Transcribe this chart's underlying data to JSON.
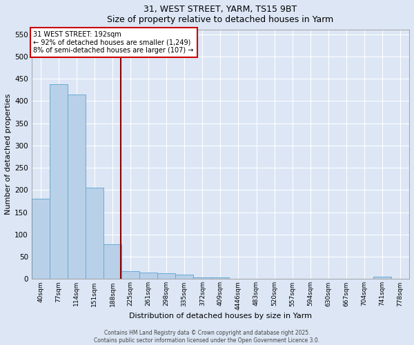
{
  "title_line1": "31, WEST STREET, YARM, TS15 9BT",
  "title_line2": "Size of property relative to detached houses in Yarm",
  "xlabel": "Distribution of detached houses by size in Yarm",
  "ylabel": "Number of detached properties",
  "categories": [
    "40sqm",
    "77sqm",
    "114sqm",
    "151sqm",
    "188sqm",
    "225sqm",
    "261sqm",
    "298sqm",
    "335sqm",
    "372sqm",
    "409sqm",
    "4446sqm",
    "483sqm",
    "520sqm",
    "557sqm",
    "594sqm",
    "630sqm",
    "667sqm",
    "704sqm",
    "741sqm",
    "778sqm"
  ],
  "values": [
    180,
    438,
    415,
    205,
    78,
    18,
    15,
    13,
    10,
    4,
    4,
    0,
    0,
    0,
    0,
    0,
    0,
    0,
    0,
    5,
    0
  ],
  "bar_color": "#b8d0e8",
  "bar_edgecolor": "#6aaad4",
  "background_color": "#dce6f5",
  "fig_background_color": "#dce6f5",
  "grid_color": "#ffffff",
  "red_line_x": 4.475,
  "annotation_title": "31 WEST STREET: 192sqm",
  "annotation_line1": "← 92% of detached houses are smaller (1,249)",
  "annotation_line2": "8% of semi-detached houses are larger (107) →",
  "annotation_box_color": "#cc0000",
  "ylim": [
    0,
    560
  ],
  "yticks": [
    0,
    50,
    100,
    150,
    200,
    250,
    300,
    350,
    400,
    450,
    500,
    550
  ],
  "footnote1": "Contains HM Land Registry data © Crown copyright and database right 2025.",
  "footnote2": "Contains public sector information licensed under the Open Government Licence 3.0."
}
